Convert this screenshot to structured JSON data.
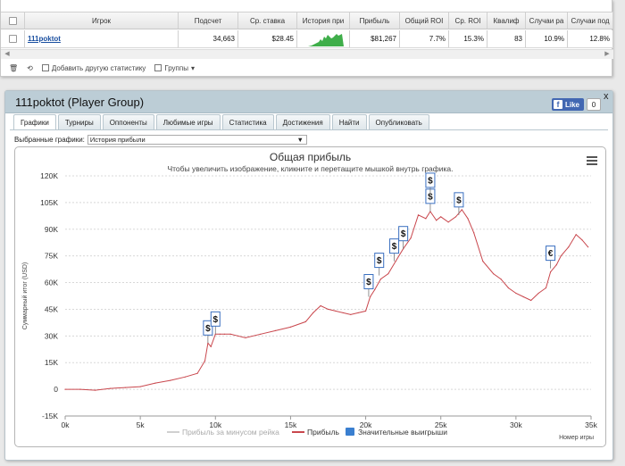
{
  "stats": {
    "columns": [
      "Игрок",
      "Подсчет",
      "Ср. ставка",
      "История при",
      "Прибыль",
      "Общий ROI",
      "Ср. ROI",
      "Квалиф",
      "Случаи ра",
      "Случаи под"
    ],
    "row": {
      "player": "111poktot",
      "count": "34,663",
      "avg_stake": "$28.45",
      "profit": "$81,267",
      "total_roi": "7.7%",
      "avg_roi": "15.3%",
      "qualified": "83",
      "cases1": "10.9%",
      "cases2": "12.8%"
    },
    "toolbar": {
      "add_stats": "Добавить другую статистику",
      "groups": "Группы"
    }
  },
  "group": {
    "title": "111poktot (Player Group)",
    "fb_like": "Like",
    "fb_count": "0",
    "close": "x",
    "tabs": [
      "Графики",
      "Турниры",
      "Оппоненты",
      "Любимые игры",
      "Статистика",
      "Достижения",
      "Найти",
      "Опубликовать"
    ],
    "chart_select_label": "Выбранные графики:",
    "chart_select_value": "История прибыли"
  },
  "chart_data": {
    "type": "line",
    "title": "Общая прибыль",
    "subtitle": "Чтобы увеличить изображение, кликните и перетащите мышкой внутрь графика.",
    "xlabel": "Номер игры",
    "ylabel": "Суммарный итог (USD)",
    "xlim": [
      0,
      35000
    ],
    "ylim": [
      -15000,
      120000
    ],
    "xticks": [
      "0k",
      "5k",
      "10k",
      "15k",
      "20k",
      "25k",
      "30k",
      "35k"
    ],
    "yticks": [
      "-15K",
      "0",
      "15K",
      "30K",
      "45K",
      "60K",
      "75K",
      "90K",
      "105K",
      "120K"
    ],
    "grid": true,
    "legend_position": "bottom",
    "legend": [
      "Прибыль за минусом рейка",
      "Прибыль",
      "Значительные выигрыши"
    ],
    "series": [
      {
        "name": "Прибыль",
        "color": "#c9474d",
        "x": [
          0,
          1000,
          2000,
          3000,
          4000,
          5000,
          6000,
          7000,
          8000,
          8800,
          9300,
          9500,
          9700,
          10000,
          10300,
          10600,
          11000,
          11500,
          12000,
          13000,
          14000,
          15000,
          16000,
          16500,
          17000,
          17500,
          18000,
          18500,
          19000,
          19500,
          20000,
          20300,
          20600,
          21000,
          21500,
          22000,
          22500,
          23000,
          23500,
          24000,
          24300,
          24700,
          25000,
          25500,
          26000,
          26400,
          26800,
          27200,
          27800,
          28500,
          29000,
          29500,
          30000,
          30500,
          31000,
          31500,
          32000,
          32300,
          32700,
          33000,
          33500,
          34000,
          34400,
          34800
        ],
        "y": [
          0,
          0,
          -500,
          500,
          1000,
          1500,
          3500,
          5000,
          7000,
          9000,
          16000,
          26000,
          24000,
          31000,
          31000,
          31000,
          31000,
          30000,
          29000,
          31000,
          33000,
          35000,
          38000,
          43000,
          47000,
          45000,
          44000,
          43000,
          42000,
          43000,
          44000,
          52000,
          56000,
          62000,
          65000,
          72000,
          79000,
          85000,
          98000,
          96000,
          100000,
          95000,
          97000,
          94000,
          97000,
          101000,
          96000,
          88000,
          72000,
          65000,
          62000,
          57000,
          54000,
          52000,
          50000,
          54000,
          57000,
          66000,
          70000,
          75000,
          80000,
          87000,
          84000,
          80000
        ]
      }
    ],
    "markers": [
      {
        "x": 9500,
        "y": 26000,
        "label": "$"
      },
      {
        "x": 10000,
        "y": 31000,
        "label": "$"
      },
      {
        "x": 20200,
        "y": 52000,
        "label": "$"
      },
      {
        "x": 20900,
        "y": 64000,
        "label": "$"
      },
      {
        "x": 21900,
        "y": 72000,
        "label": "$"
      },
      {
        "x": 22500,
        "y": 79000,
        "label": "$"
      },
      {
        "x": 24300,
        "y": 100000,
        "label": "$"
      },
      {
        "x": 24300,
        "y": 109000,
        "label": "$"
      },
      {
        "x": 26200,
        "y": 98000,
        "label": "$"
      },
      {
        "x": 32300,
        "y": 68000,
        "label": "€"
      }
    ]
  }
}
